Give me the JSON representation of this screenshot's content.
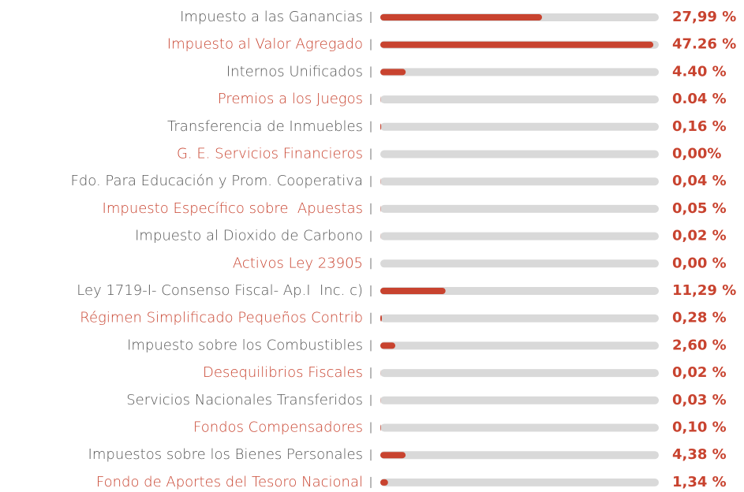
{
  "chart_data": {
    "type": "bar",
    "orientation": "horizontal",
    "categories": [
      "Impuesto a las Ganancias",
      "Impuesto al Valor Agregado",
      "Internos Unificados",
      "Premios a los Juegos",
      "Transferencia de Inmuebles",
      "G. E. Servicios Financieros",
      "Fdo. Para Educación y Prom. Cooperativa",
      "Impuesto Específico sobre  Apuestas",
      "Impuesto al Dioxido de Carbono",
      "Activos Ley 23905",
      "Ley 1719-I- Consenso Fiscal- Ap.I  Inc. c)",
      "Régimen Simplificado Pequeños Contrib",
      "Impuesto sobre los Combustibles",
      "Desequilibrios Fiscales",
      "Servicios Nacionales Transferidos",
      "Fondos Compensadores",
      "Impuestos sobre los Bienes Personales",
      "Fondo de Aportes del Tesoro Nacional"
    ],
    "values": [
      27.99,
      47.26,
      4.4,
      0.04,
      0.16,
      0.0,
      0.04,
      0.05,
      0.02,
      0.0,
      11.29,
      0.28,
      2.6,
      0.02,
      0.03,
      0.1,
      4.38,
      1.34
    ],
    "value_labels": [
      "27,99 %",
      "47.26 %",
      "4.40 %",
      "0.04 %",
      "0,16 %",
      "0,00%",
      "0,04 %",
      "0,05 %",
      "0,02 %",
      "0,00 %",
      "11,29 %",
      "0,28 %",
      "2,60 %",
      "0,02 %",
      "0,03 %",
      "0,10 %",
      "4,38 %",
      "1,34 %"
    ],
    "color": "#c8432f",
    "track_color": "#d9d9d9",
    "label_colors": [
      "#555555",
      "#c8432f"
    ],
    "xlim": [
      0,
      48.2
    ]
  }
}
